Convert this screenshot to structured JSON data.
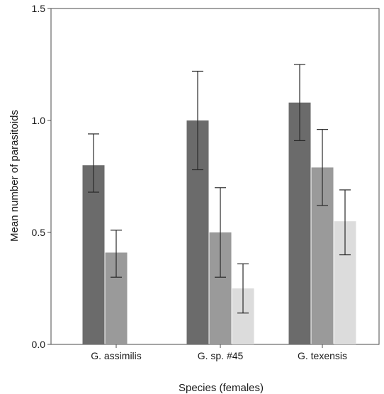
{
  "chart_data": {
    "type": "bar",
    "title": "",
    "xlabel": "Species (females)",
    "ylabel": "Mean number of parasitoids",
    "ylim": [
      0,
      1.5
    ],
    "yticks": [
      "0.0",
      "0.5",
      "1.0",
      "1.5"
    ],
    "categories": [
      "G. assimilis",
      "G. sp. #45",
      "G. texensis"
    ],
    "series": [
      {
        "color": "#6b6b6b",
        "values": [
          0.8,
          1.0,
          1.08
        ],
        "error_low": [
          0.68,
          0.78,
          0.91
        ],
        "error_high": [
          0.94,
          1.22,
          1.25
        ]
      },
      {
        "color": "#9a9a9a",
        "values": [
          0.41,
          0.5,
          0.79
        ],
        "error_low": [
          0.3,
          0.3,
          0.62
        ],
        "error_high": [
          0.51,
          0.7,
          0.96
        ]
      },
      {
        "color": "#dcdcdc",
        "values": [
          null,
          0.25,
          0.55
        ],
        "error_low": [
          null,
          0.14,
          0.4
        ],
        "error_high": [
          null,
          0.36,
          0.69
        ]
      }
    ],
    "grid": false,
    "legend": "none"
  }
}
